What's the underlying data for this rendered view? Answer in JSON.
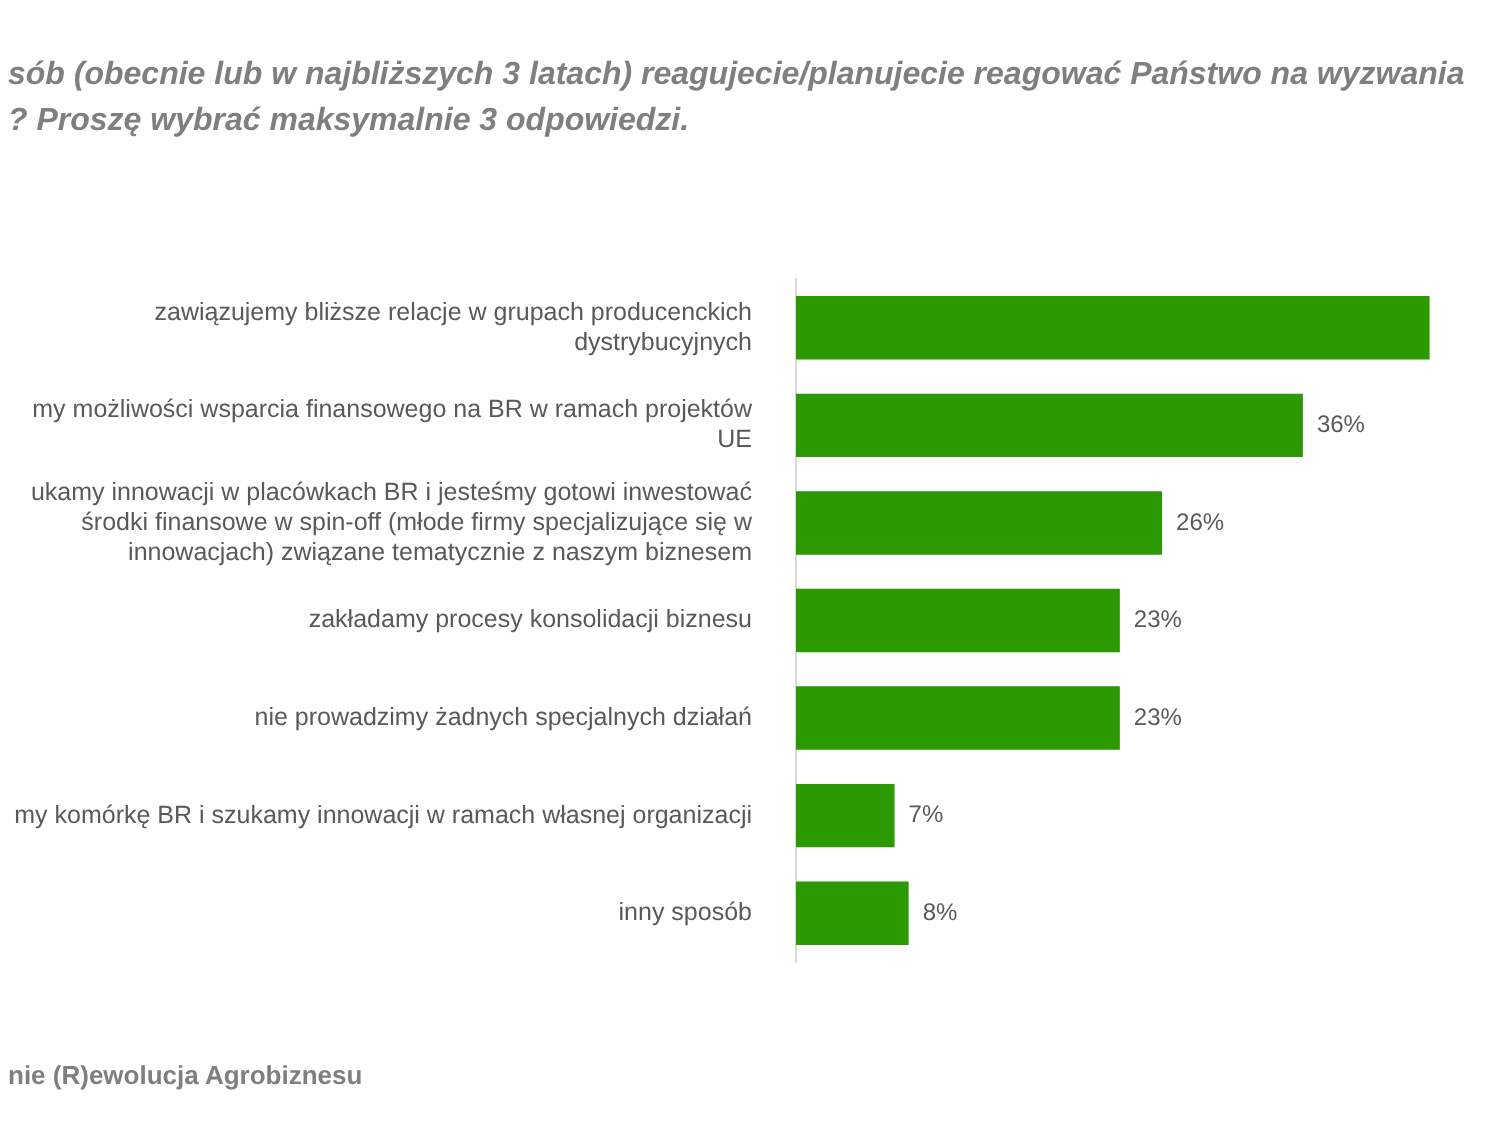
{
  "chart_data": {
    "type": "bar",
    "orientation": "horizontal",
    "title": "sób (obecnie lub w najbliższych 3 latach) reagujecie/planujecie reagować Państwo na wyzwania\n? Proszę wybrać maksymalnie 3 odpowiedzi.",
    "categories": [
      "zawiązujemy bliższe relacje w grupach producenckich\ndystrybucyjnych",
      "my możliwości wsparcia finansowego na BR w ramach projektów\nUE",
      "ukamy innowacji w placówkach BR i jesteśmy gotowi inwestować\nśrodki finansowe w spin-off (młode firmy specjalizujące się w\ninnowacjach) związane tematycznie z naszym biznesem",
      "zakładamy procesy konsolidacji biznesu",
      "nie prowadzimy żadnych specjalnych działań",
      "my komórkę BR i szukamy innowacji w ramach własnej organizacji",
      "inny sposób"
    ],
    "values": [
      45,
      36,
      26,
      23,
      23,
      7,
      8
    ],
    "value_labels": [
      null,
      "36%",
      "26%",
      "23%",
      "23%",
      "7%",
      "8%"
    ],
    "color": "#2a9a00",
    "annotations": [
      "nie (R)ewolucja Agrobiznesu"
    ]
  }
}
